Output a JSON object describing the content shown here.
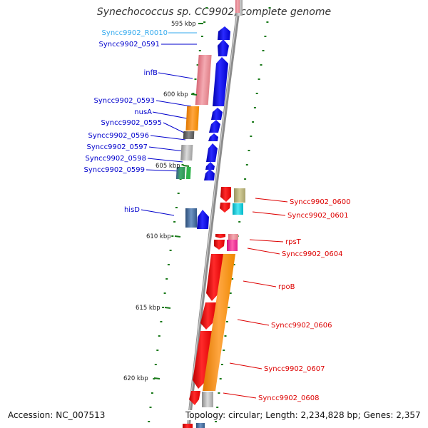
{
  "title": "Synechococcus sp. CC9902, complete genome",
  "footer": {
    "accession": "Accession: NC_007513",
    "summary": "Topology: circular; Length: 2,234,828 bp; Genes: 2,357"
  },
  "colors": {
    "left_label": "#0000cc",
    "rna_label": "#33aaee",
    "right_label": "#dd0000",
    "backbone": "#8c8c8c",
    "tick": "#1a7a1a"
  },
  "scale_labels": [
    "595 kbp",
    "600 kbp",
    "605 kbp",
    "610 kbp",
    "615 kbp",
    "620 kbp"
  ],
  "left_labels": [
    "Syncc9902_R0010",
    "Syncc9902_0591",
    "infB",
    "Syncc9902_0593",
    "nusA",
    "Syncc9902_0595",
    "Syncc9902_0596",
    "Syncc9902_0597",
    "Syncc9902_0598",
    "Syncc9902_0599",
    "hisD"
  ],
  "right_labels": [
    "Syncc9902_0600",
    "Syncc9902_0601",
    "rpsT",
    "Syncc9902_0604",
    "rpoB",
    "Syncc9902_0606",
    "Syncc9902_0607",
    "Syncc9902_0608"
  ]
}
